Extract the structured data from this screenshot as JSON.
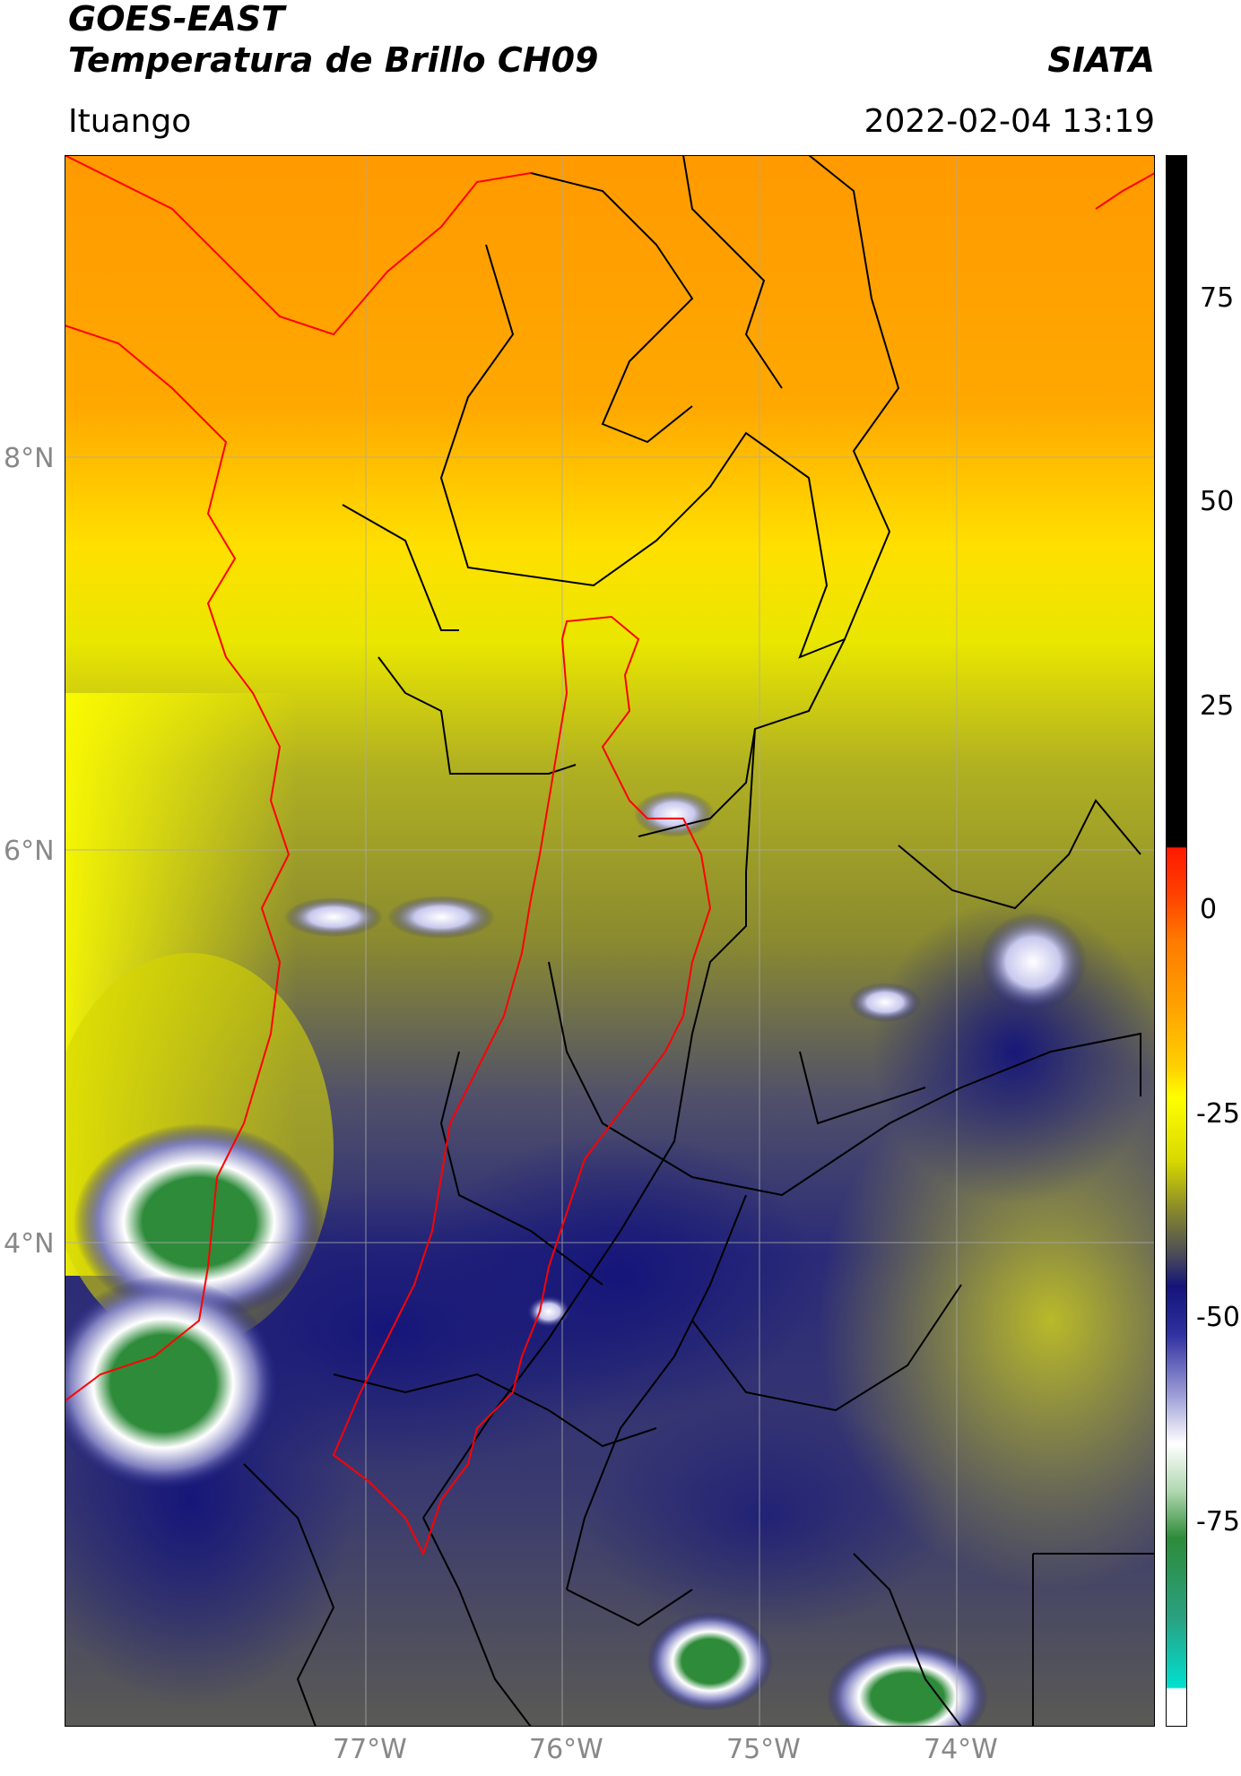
{
  "header": {
    "satellite": "GOES-EAST",
    "product": "Temperatura de Brillo CH09",
    "institution": "SIATA",
    "location": "Ituango",
    "datetime": "2022-02-04 13:19"
  },
  "axes": {
    "lat_ticks": [
      "8°N",
      "6°N",
      "4°N"
    ],
    "lon_ticks": [
      "77°W",
      "76°W",
      "75°W",
      "74°W"
    ]
  },
  "colorbar": {
    "range": [
      -95,
      90
    ],
    "ticks": [
      "75",
      "50",
      "25",
      "0",
      "-25",
      "-50",
      "-75"
    ],
    "colors": {
      "black": "#000000",
      "red": "#ff1a00",
      "orange": "#ff9a00",
      "yellow": "#ffff00",
      "olive": "#8b8b2a",
      "navy": "#14147a",
      "white": "#ffffff",
      "green": "#2e8b3a",
      "cyan": "#00e0d0"
    }
  },
  "map_colors": {
    "boundary_red": "#ff0000",
    "boundary_black": "#000000",
    "grid": "#aaaaaa"
  }
}
